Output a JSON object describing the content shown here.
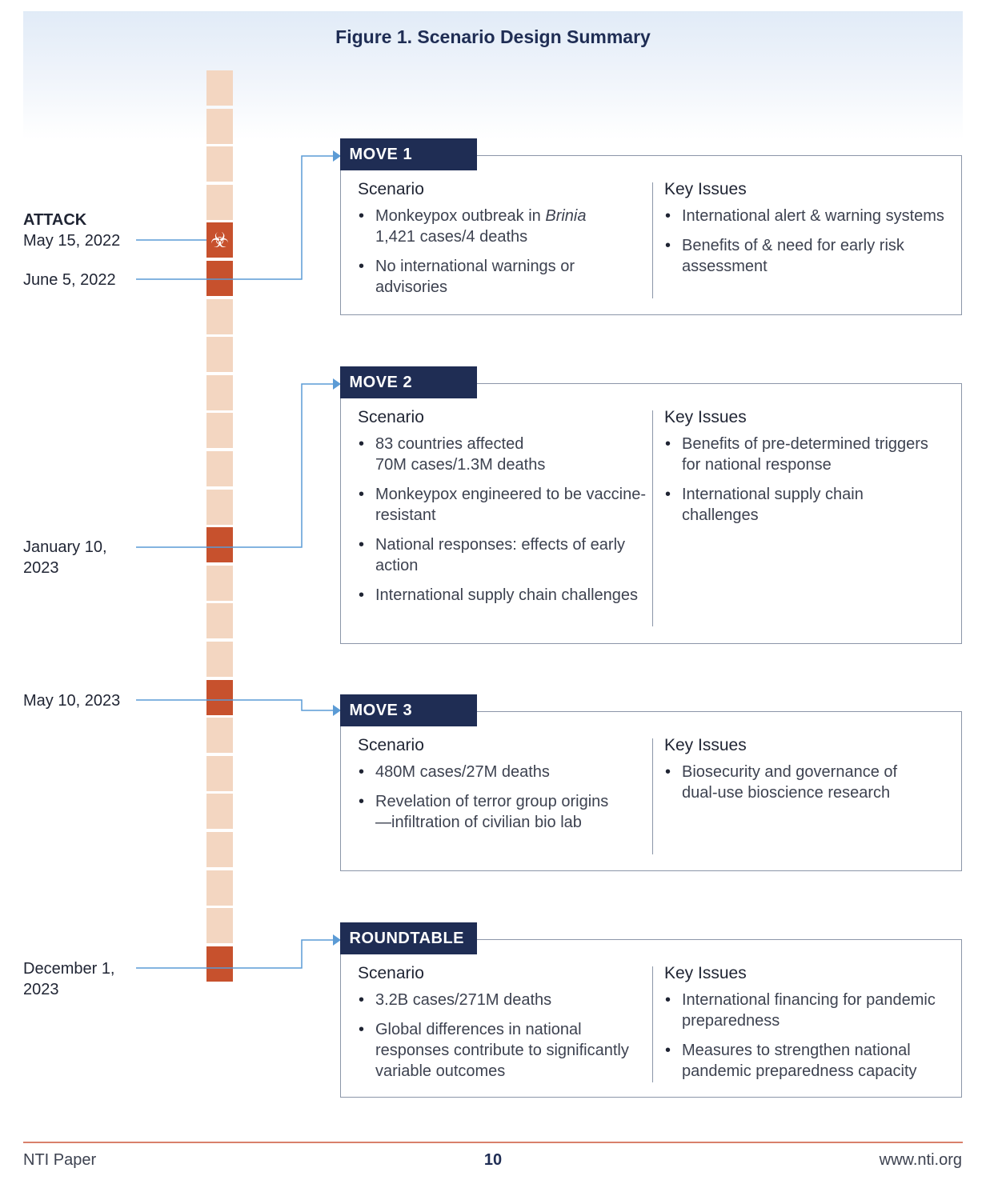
{
  "figure": {
    "title": "Figure 1. Scenario Design Summary"
  },
  "timeline": {
    "segment_count": 24,
    "active_segments": [
      4,
      5,
      12,
      16,
      23
    ],
    "hazard_segment": 4,
    "colors": {
      "inactive": "#f3d6c1",
      "active": "#c7512d",
      "connector": "#5b9bd5"
    }
  },
  "dates": {
    "attack_label": "ATTACK",
    "attack_date": "May 15, 2022",
    "d1": "June 5, 2022",
    "d2_line1": "January 10,",
    "d2_line2": "2023",
    "d3": "May 10, 2023",
    "d4_line1": "December 1,",
    "d4_line2": "2023"
  },
  "moves": [
    {
      "tag": "MOVE 1",
      "scenario_heading": "Scenario",
      "issues_heading": "Key Issues",
      "scenario": [
        "Monkeypox outbreak in",
        "Brinia",
        "1,421 cases/4 deaths",
        "No international warnings or advisories"
      ],
      "issues": [
        "International alert & warning systems",
        "Benefits of & need for early risk assessment"
      ]
    },
    {
      "tag": "MOVE 2",
      "scenario_heading": "Scenario",
      "issues_heading": "Key Issues",
      "scenario": [
        "83 countries affected",
        "70M cases/1.3M deaths",
        "Monkeypox engineered to be vaccine-resistant",
        "National responses: effects of early action",
        "International supply chain challenges"
      ],
      "issues": [
        "Benefits of pre-determined triggers for national response",
        "International supply chain challenges"
      ]
    },
    {
      "tag": "MOVE 3",
      "scenario_heading": "Scenario",
      "issues_heading": "Key Issues",
      "scenario": [
        "480M cases/27M deaths",
        "Revelation of terror group origins—infiltration of civilian bio lab"
      ],
      "issues": [
        "Biosecurity and governance of dual-use bioscience research"
      ]
    },
    {
      "tag": "ROUNDTABLE",
      "scenario_heading": "Scenario",
      "issues_heading": "Key Issues",
      "scenario": [
        "3.2B cases/271M deaths",
        "Global differences in national responses contribute to significantly variable outcomes"
      ],
      "issues": [
        "International financing for pandemic preparedness",
        "Measures to strengthen national pandemic preparedness capacity"
      ]
    }
  ],
  "footer": {
    "left": "NTI Paper",
    "page": "10",
    "right": "www.nti.org"
  }
}
